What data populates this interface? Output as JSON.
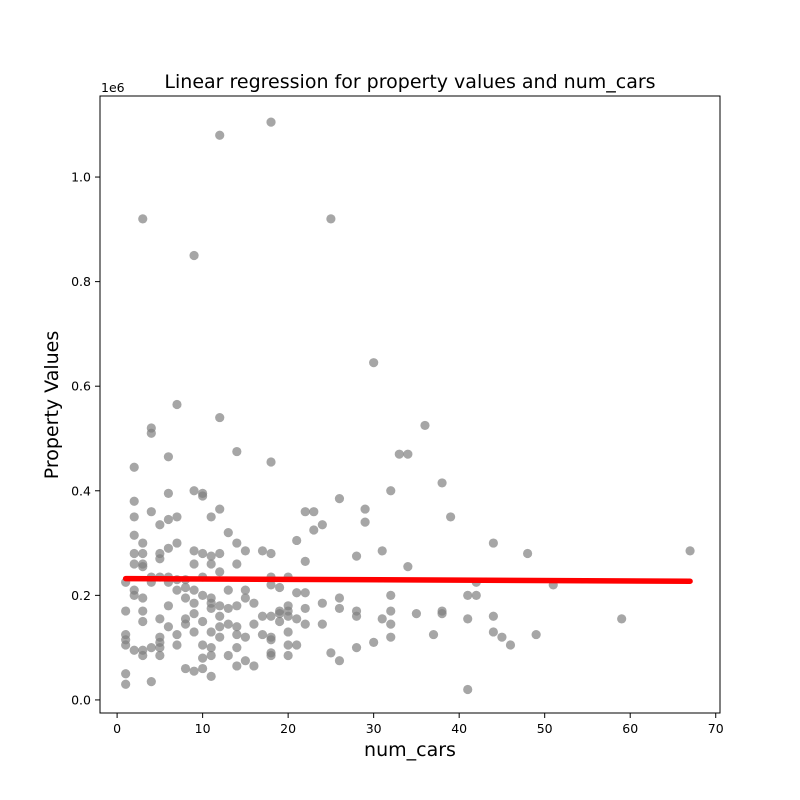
{
  "chart_data": {
    "type": "scatter",
    "title": "Linear regression for property values and num_cars",
    "xlabel": "num_cars",
    "ylabel": "Property Values",
    "y_offset_label": "1e6",
    "xlim": [
      -2,
      70.5
    ],
    "ylim": [
      -0.025,
      1.155
    ],
    "x_ticks": [
      0,
      10,
      20,
      30,
      40,
      50,
      60,
      70
    ],
    "x_tick_labels": [
      "0",
      "10",
      "20",
      "30",
      "40",
      "50",
      "60",
      "70"
    ],
    "y_ticks": [
      0.0,
      0.2,
      0.4,
      0.6,
      0.8,
      1.0
    ],
    "y_tick_labels": [
      "0.0",
      "0.2",
      "0.4",
      "0.6",
      "0.8",
      "1.0"
    ],
    "grid": false,
    "colors": {
      "points": "#808080",
      "regression_line": "#ff0000"
    },
    "series": [
      {
        "kind": "scatter",
        "points": [
          [
            1,
            0.03
          ],
          [
            1,
            0.05
          ],
          [
            1,
            0.105
          ],
          [
            1,
            0.115
          ],
          [
            1,
            0.125
          ],
          [
            1,
            0.17
          ],
          [
            1,
            0.225
          ],
          [
            2,
            0.095
          ],
          [
            2,
            0.2
          ],
          [
            2,
            0.21
          ],
          [
            2,
            0.26
          ],
          [
            2,
            0.28
          ],
          [
            2,
            0.315
          ],
          [
            2,
            0.35
          ],
          [
            2,
            0.38
          ],
          [
            2,
            0.445
          ],
          [
            3,
            0.085
          ],
          [
            3,
            0.095
          ],
          [
            3,
            0.15
          ],
          [
            3,
            0.17
          ],
          [
            3,
            0.195
          ],
          [
            3,
            0.255
          ],
          [
            3,
            0.26
          ],
          [
            3,
            0.28
          ],
          [
            3,
            0.3
          ],
          [
            3,
            0.92
          ],
          [
            4,
            0.035
          ],
          [
            4,
            0.1
          ],
          [
            4,
            0.225
          ],
          [
            4,
            0.235
          ],
          [
            4,
            0.36
          ],
          [
            4,
            0.51
          ],
          [
            4,
            0.52
          ],
          [
            5,
            0.085
          ],
          [
            5,
            0.1
          ],
          [
            5,
            0.11
          ],
          [
            5,
            0.12
          ],
          [
            5,
            0.155
          ],
          [
            5,
            0.235
          ],
          [
            5,
            0.27
          ],
          [
            5,
            0.28
          ],
          [
            5,
            0.335
          ],
          [
            6,
            0.14
          ],
          [
            6,
            0.18
          ],
          [
            6,
            0.225
          ],
          [
            6,
            0.235
          ],
          [
            6,
            0.29
          ],
          [
            6,
            0.345
          ],
          [
            6,
            0.395
          ],
          [
            6,
            0.465
          ],
          [
            7,
            0.105
          ],
          [
            7,
            0.125
          ],
          [
            7,
            0.21
          ],
          [
            7,
            0.23
          ],
          [
            7,
            0.3
          ],
          [
            7,
            0.35
          ],
          [
            7,
            0.565
          ],
          [
            8,
            0.06
          ],
          [
            8,
            0.145
          ],
          [
            8,
            0.155
          ],
          [
            8,
            0.195
          ],
          [
            8,
            0.215
          ],
          [
            8,
            0.23
          ],
          [
            9,
            0.055
          ],
          [
            9,
            0.13
          ],
          [
            9,
            0.165
          ],
          [
            9,
            0.185
          ],
          [
            9,
            0.21
          ],
          [
            9,
            0.26
          ],
          [
            9,
            0.285
          ],
          [
            9,
            0.4
          ],
          [
            9,
            0.85
          ],
          [
            10,
            0.06
          ],
          [
            10,
            0.08
          ],
          [
            10,
            0.105
          ],
          [
            10,
            0.15
          ],
          [
            10,
            0.2
          ],
          [
            10,
            0.235
          ],
          [
            10,
            0.28
          ],
          [
            10,
            0.39
          ],
          [
            10,
            0.395
          ],
          [
            11,
            0.045
          ],
          [
            11,
            0.085
          ],
          [
            11,
            0.1
          ],
          [
            11,
            0.13
          ],
          [
            11,
            0.175
          ],
          [
            11,
            0.185
          ],
          [
            11,
            0.195
          ],
          [
            11,
            0.26
          ],
          [
            11,
            0.275
          ],
          [
            11,
            0.35
          ],
          [
            12,
            0.12
          ],
          [
            12,
            0.14
          ],
          [
            12,
            0.16
          ],
          [
            12,
            0.18
          ],
          [
            12,
            0.245
          ],
          [
            12,
            0.28
          ],
          [
            12,
            0.365
          ],
          [
            12,
            0.54
          ],
          [
            12,
            1.08
          ],
          [
            13,
            0.085
          ],
          [
            13,
            0.145
          ],
          [
            13,
            0.175
          ],
          [
            13,
            0.21
          ],
          [
            13,
            0.32
          ],
          [
            14,
            0.065
          ],
          [
            14,
            0.1
          ],
          [
            14,
            0.125
          ],
          [
            14,
            0.14
          ],
          [
            14,
            0.18
          ],
          [
            14,
            0.26
          ],
          [
            14,
            0.3
          ],
          [
            14,
            0.475
          ],
          [
            15,
            0.075
          ],
          [
            15,
            0.12
          ],
          [
            15,
            0.195
          ],
          [
            15,
            0.21
          ],
          [
            15,
            0.285
          ],
          [
            16,
            0.065
          ],
          [
            16,
            0.145
          ],
          [
            16,
            0.185
          ],
          [
            17,
            0.125
          ],
          [
            17,
            0.16
          ],
          [
            17,
            0.285
          ],
          [
            18,
            0.085
          ],
          [
            18,
            0.09
          ],
          [
            18,
            0.115
          ],
          [
            18,
            0.12
          ],
          [
            18,
            0.16
          ],
          [
            18,
            0.22
          ],
          [
            18,
            0.235
          ],
          [
            18,
            0.28
          ],
          [
            18,
            0.455
          ],
          [
            18,
            1.105
          ],
          [
            19,
            0.15
          ],
          [
            19,
            0.165
          ],
          [
            19,
            0.17
          ],
          [
            19,
            0.215
          ],
          [
            20,
            0.085
          ],
          [
            20,
            0.105
          ],
          [
            20,
            0.13
          ],
          [
            20,
            0.16
          ],
          [
            20,
            0.17
          ],
          [
            20,
            0.18
          ],
          [
            20,
            0.235
          ],
          [
            21,
            0.105
          ],
          [
            21,
            0.155
          ],
          [
            21,
            0.205
          ],
          [
            21,
            0.305
          ],
          [
            22,
            0.145
          ],
          [
            22,
            0.175
          ],
          [
            22,
            0.205
          ],
          [
            22,
            0.265
          ],
          [
            22,
            0.36
          ],
          [
            23,
            0.325
          ],
          [
            23,
            0.36
          ],
          [
            24,
            0.145
          ],
          [
            24,
            0.185
          ],
          [
            24,
            0.335
          ],
          [
            25,
            0.09
          ],
          [
            25,
            0.92
          ],
          [
            26,
            0.075
          ],
          [
            26,
            0.175
          ],
          [
            26,
            0.195
          ],
          [
            26,
            0.385
          ],
          [
            28,
            0.1
          ],
          [
            28,
            0.16
          ],
          [
            28,
            0.17
          ],
          [
            28,
            0.275
          ],
          [
            29,
            0.34
          ],
          [
            29,
            0.365
          ],
          [
            30,
            0.11
          ],
          [
            30,
            0.645
          ],
          [
            31,
            0.155
          ],
          [
            31,
            0.285
          ],
          [
            32,
            0.12
          ],
          [
            32,
            0.145
          ],
          [
            32,
            0.17
          ],
          [
            32,
            0.2
          ],
          [
            32,
            0.4
          ],
          [
            33,
            0.47
          ],
          [
            34,
            0.255
          ],
          [
            34,
            0.47
          ],
          [
            35,
            0.165
          ],
          [
            36,
            0.525
          ],
          [
            37,
            0.125
          ],
          [
            38,
            0.165
          ],
          [
            38,
            0.17
          ],
          [
            38,
            0.415
          ],
          [
            39,
            0.35
          ],
          [
            41,
            0.02
          ],
          [
            41,
            0.155
          ],
          [
            41,
            0.2
          ],
          [
            42,
            0.2
          ],
          [
            42,
            0.225
          ],
          [
            44,
            0.13
          ],
          [
            44,
            0.16
          ],
          [
            44,
            0.3
          ],
          [
            45,
            0.12
          ],
          [
            46,
            0.105
          ],
          [
            48,
            0.28
          ],
          [
            49,
            0.125
          ],
          [
            51,
            0.22
          ],
          [
            59,
            0.155
          ],
          [
            67,
            0.285
          ]
        ]
      },
      {
        "kind": "line",
        "x": [
          1,
          67
        ],
        "values": [
          0.232,
          0.227
        ]
      }
    ]
  }
}
